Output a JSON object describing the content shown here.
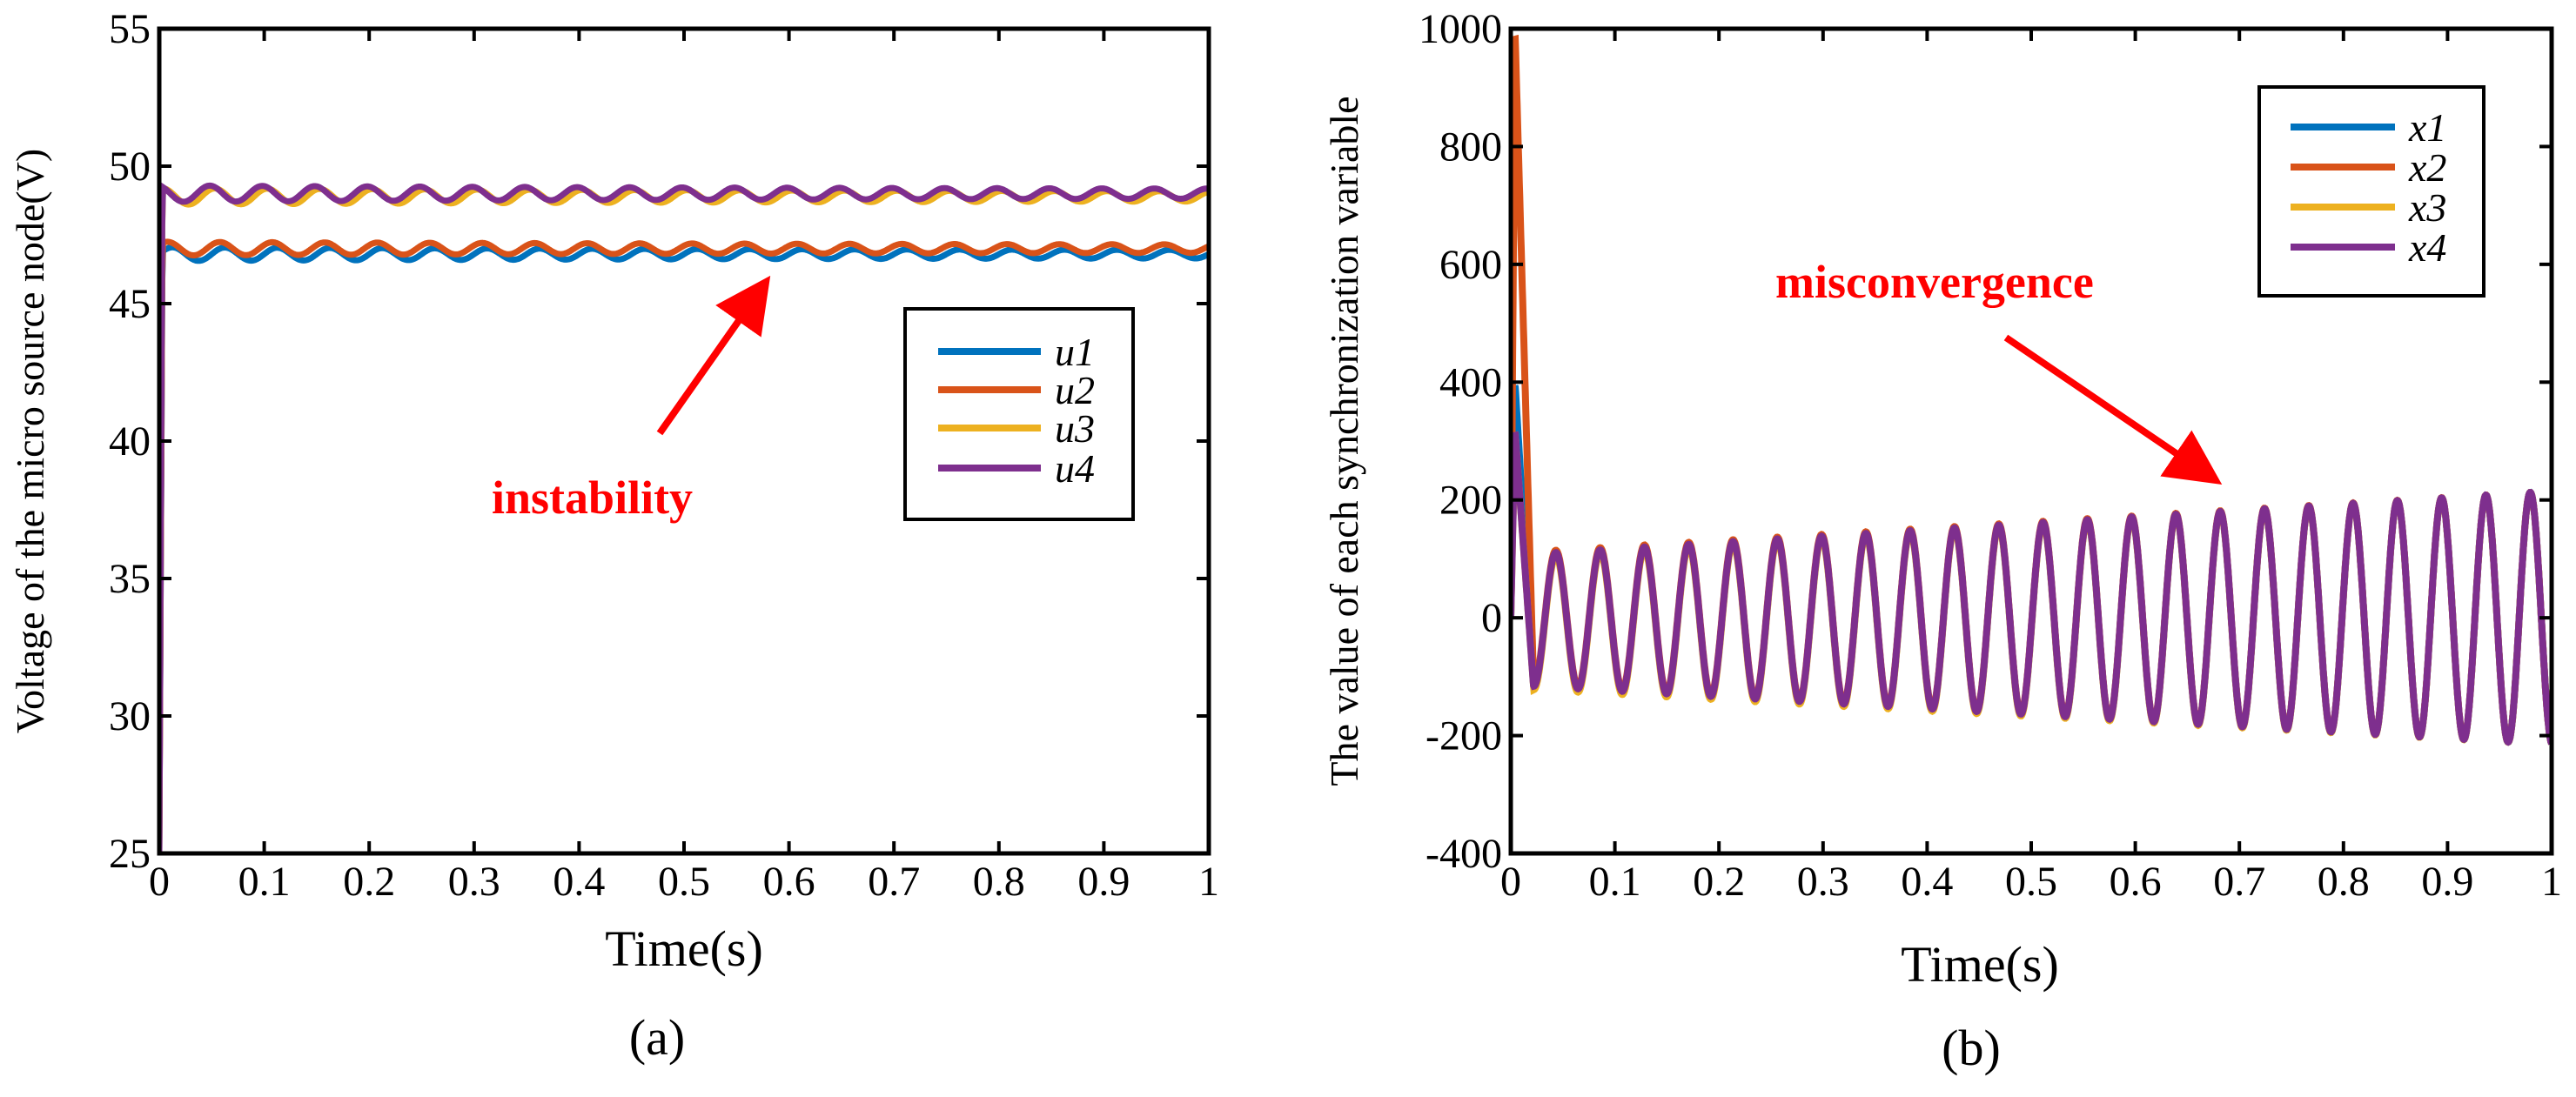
{
  "chart_data": [
    {
      "type": "line",
      "caption": "(a)",
      "xlabel": "Time(s)",
      "ylabel": "Voltage of the micro source node(V)",
      "xlim": [
        0,
        1
      ],
      "ylim": [
        25,
        55
      ],
      "xticks": [
        "0",
        "0.1",
        "0.2",
        "0.3",
        "0.4",
        "0.5",
        "0.6",
        "0.7",
        "0.8",
        "0.9",
        "1"
      ],
      "yticks": [
        "25",
        "30",
        "35",
        "40",
        "45",
        "50",
        "55"
      ],
      "grid": false,
      "legend_position": "right-middle",
      "annotation": "instability",
      "series": [
        {
          "name": "u1",
          "color": "#0072BD",
          "initial": 25,
          "steady": 46.8,
          "ripple": 0.25,
          "cycles": 20
        },
        {
          "name": "u2",
          "color": "#D95319",
          "initial": 25,
          "steady": 47.0,
          "ripple": 0.25,
          "cycles": 20
        },
        {
          "name": "u3",
          "color": "#EDB120",
          "initial": 25,
          "steady": 48.9,
          "ripple": 0.3,
          "cycles": 20
        },
        {
          "name": "u4",
          "color": "#7E2F8E",
          "initial": 25,
          "steady": 49.0,
          "ripple": 0.3,
          "cycles": 20
        }
      ]
    },
    {
      "type": "line",
      "caption": "(b)",
      "xlabel": "Time(s)",
      "ylabel": "The value of each synchronization variable",
      "xlim": [
        0,
        1
      ],
      "ylim": [
        -400,
        1000
      ],
      "xticks": [
        "0",
        "0.1",
        "0.2",
        "0.3",
        "0.4",
        "0.5",
        "0.6",
        "0.7",
        "0.8",
        "0.9",
        "1"
      ],
      "yticks": [
        "-400",
        "-200",
        "0",
        "200",
        "400",
        "600",
        "800",
        "1000"
      ],
      "grid": false,
      "legend_position": "top-right",
      "annotation": "misconvergence",
      "oscillation": {
        "cycles": 23.5,
        "amplitude_start": 110,
        "amplitude_end": 215
      },
      "series": [
        {
          "name": "x1",
          "color": "#0072BD",
          "peak": 400,
          "offset": -6
        },
        {
          "name": "x2",
          "color": "#D95319",
          "peak": 1000,
          "offset": 0
        },
        {
          "name": "x3",
          "color": "#EDB120",
          "peak": 320,
          "offset": -10
        },
        {
          "name": "x4",
          "color": "#7E2F8E",
          "peak": 320,
          "offset": -4
        }
      ]
    }
  ]
}
